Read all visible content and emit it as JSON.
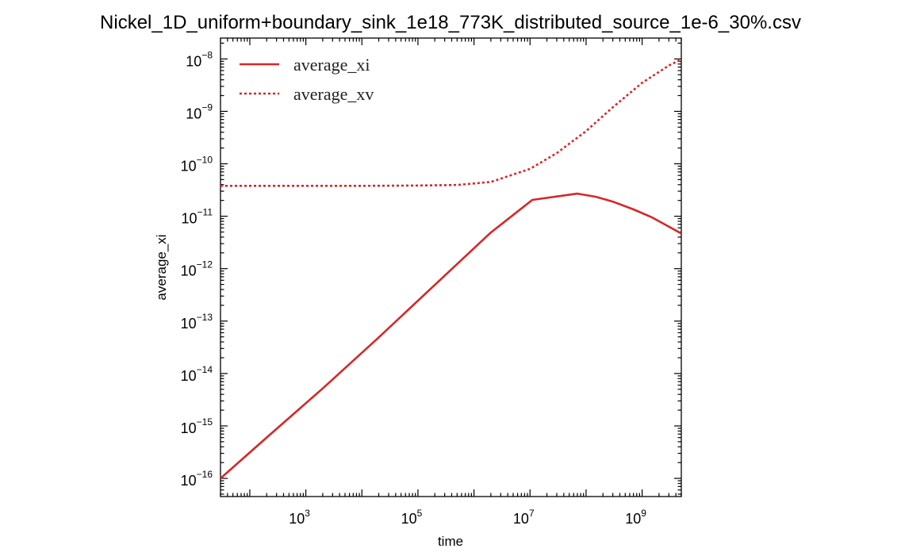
{
  "chart_data": {
    "type": "line",
    "title": "Nickel_1D_uniform+boundary_sink_1e18_773K_distributed_source_1e-6_30%.csv",
    "xlabel": "time",
    "ylabel": "average_xi",
    "xscale": "log",
    "yscale": "log",
    "xlim": [
      30,
      5000000000
    ],
    "ylim": [
      4.5e-17,
      2.5e-08
    ],
    "x_ticks": [
      {
        "value": 1000,
        "base": "10",
        "exp": "3"
      },
      {
        "value": 100000,
        "base": "10",
        "exp": "5"
      },
      {
        "value": 10000000,
        "base": "10",
        "exp": "7"
      },
      {
        "value": 1000000000,
        "base": "10",
        "exp": "9"
      }
    ],
    "y_ticks": [
      {
        "value": 1e-16,
        "base": "10",
        "exp": "−16"
      },
      {
        "value": 1e-15,
        "base": "10",
        "exp": "−15"
      },
      {
        "value": 1e-14,
        "base": "10",
        "exp": "−14"
      },
      {
        "value": 1e-13,
        "base": "10",
        "exp": "−13"
      },
      {
        "value": 1e-12,
        "base": "10",
        "exp": "−12"
      },
      {
        "value": 1e-11,
        "base": "10",
        "exp": "−11"
      },
      {
        "value": 1e-10,
        "base": "10",
        "exp": "−10"
      },
      {
        "value": 1e-09,
        "base": "10",
        "exp": "−9"
      },
      {
        "value": 1e-08,
        "base": "10",
        "exp": "−8"
      }
    ],
    "grid": false,
    "legend_position": "top-left",
    "series": [
      {
        "name": "average_xi",
        "color": "#d62728",
        "style": "solid",
        "x": [
          30,
          200,
          2000,
          20000,
          200000,
          2000000,
          11000000,
          70000000,
          150000000,
          300000000,
          700000000,
          1500000000,
          5000000000
        ],
        "y": [
          1e-16,
          6e-16,
          5.2e-15,
          4.9e-14,
          4.9e-13,
          4.9e-12,
          2.05e-11,
          2.7e-11,
          2.35e-11,
          1.9e-11,
          1.35e-11,
          9.5e-12,
          4.7e-12
        ]
      },
      {
        "name": "average_xv",
        "color": "#d62728",
        "style": "dotted",
        "x": [
          30,
          1000,
          10000,
          100000,
          500000,
          2000000,
          10000000,
          30000000,
          100000000,
          300000000,
          1000000000,
          3000000000,
          5000000000
        ],
        "y": [
          3.8e-11,
          3.8e-11,
          3.8e-11,
          3.85e-11,
          3.95e-11,
          4.5e-11,
          8e-11,
          1.6e-10,
          4.2e-10,
          1.2e-09,
          3.5e-09,
          7.5e-09,
          9.8e-09
        ]
      }
    ]
  }
}
